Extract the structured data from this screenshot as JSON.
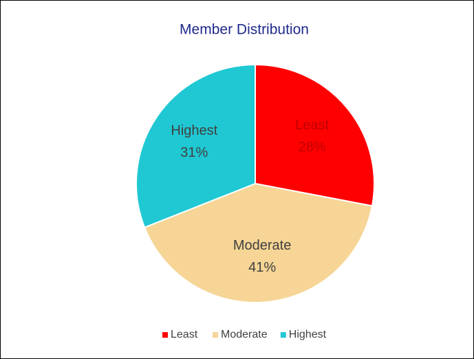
{
  "chart_data": {
    "type": "pie",
    "title": "Member Distribution",
    "categories": [
      "Least",
      "Moderate",
      "Highest"
    ],
    "values": [
      28,
      41,
      31
    ],
    "value_labels": [
      "28%",
      "41%",
      "31%"
    ],
    "colors": [
      "#ff0000",
      "#f6d596",
      "#1fc8d3"
    ],
    "legend": "bottom"
  }
}
